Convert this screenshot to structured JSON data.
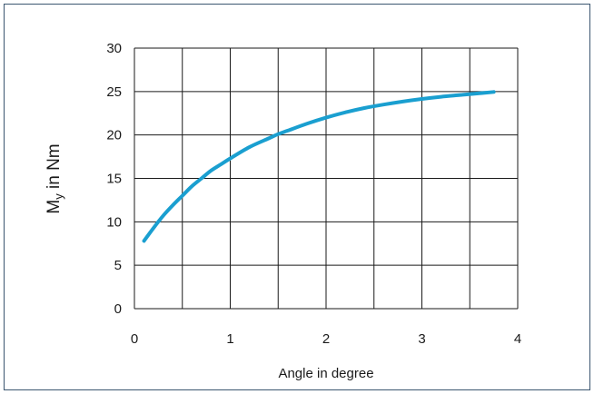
{
  "chart_data": {
    "type": "line",
    "title": "",
    "xlabel": "Angle in degree",
    "ylabel_main": "M",
    "ylabel_sub": "y",
    "ylabel_rest": " in Nm",
    "xlim": [
      0,
      4
    ],
    "ylim": [
      0,
      30
    ],
    "xticks": [
      0,
      0.5,
      1,
      1.5,
      2,
      2.5,
      3,
      3.5,
      4
    ],
    "xtick_labels": [
      "0",
      "",
      "1",
      "",
      "2",
      "",
      "3",
      "",
      "4"
    ],
    "yticks": [
      0,
      5,
      10,
      15,
      20,
      25,
      30
    ],
    "ytick_labels": [
      "0",
      "5",
      "10",
      "15",
      "20",
      "25",
      "30"
    ],
    "grid": true,
    "line_color": "#1a9fd0",
    "grid_color": "#1a1a1a",
    "series": [
      {
        "x": [
          0.1,
          0.2,
          0.3,
          0.4,
          0.5,
          0.6,
          0.7,
          0.8,
          0.9,
          1.0,
          1.2,
          1.4,
          1.5,
          1.6,
          1.8,
          2.0,
          2.2,
          2.4,
          2.6,
          2.8,
          3.0,
          3.2,
          3.4,
          3.6,
          3.75
        ],
        "y": [
          7.8,
          9.3,
          10.7,
          11.9,
          13.0,
          14.1,
          15.0,
          15.9,
          16.6,
          17.3,
          18.6,
          19.6,
          20.1,
          20.5,
          21.3,
          22.0,
          22.6,
          23.1,
          23.5,
          23.85,
          24.15,
          24.4,
          24.6,
          24.8,
          24.95
        ]
      }
    ]
  }
}
